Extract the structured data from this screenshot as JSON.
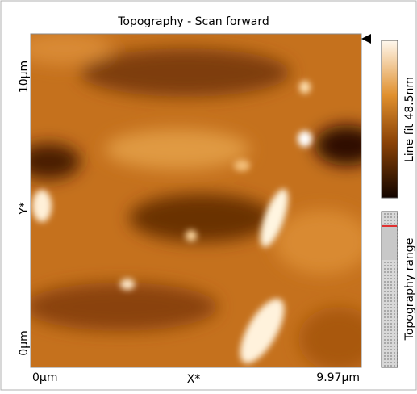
{
  "panel": {
    "title": "Topography - Scan forward",
    "y_axis": {
      "top": "10µm",
      "middle": "Y*",
      "bottom": "0µm"
    },
    "x_axis": {
      "left": "0µm",
      "middle": "X*",
      "right": "9.97µm"
    },
    "color_scale": {
      "label": "Line fit 48.5nm"
    },
    "range_bar": {
      "label": "Topography range"
    }
  }
}
